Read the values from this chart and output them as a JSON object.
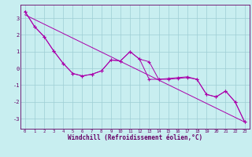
{
  "xlabel": "Windchill (Refroidissement éolien,°C)",
  "line1_y": [
    3.4,
    2.5,
    1.9,
    1.05,
    0.3,
    -0.3,
    -0.45,
    -0.35,
    -0.15,
    0.5,
    0.45,
    1.0,
    0.55,
    0.4,
    -0.65,
    -0.65,
    -0.6,
    -0.55,
    -0.65,
    -1.55,
    -1.7,
    -1.35,
    -2.0,
    -3.2
  ],
  "line2_y": [
    3.4,
    2.5,
    1.9,
    1.05,
    0.3,
    -0.3,
    -0.45,
    -0.35,
    -0.15,
    0.5,
    0.45,
    1.0,
    0.55,
    -0.65,
    -0.65,
    -0.6,
    -0.55,
    -0.5,
    -0.65,
    -1.55,
    -1.7,
    -1.35,
    -2.0,
    -3.2
  ],
  "trend_x": [
    0,
    23
  ],
  "trend_y": [
    3.2,
    -3.2
  ],
  "color": "#aa00aa",
  "bg_color": "#c8eef0",
  "grid_color": "#9ecdd4",
  "xlim": [
    -0.5,
    23.5
  ],
  "ylim": [
    -3.6,
    3.8
  ],
  "yticks": [
    -3,
    -2,
    -1,
    0,
    1,
    2,
    3
  ],
  "xticks": [
    0,
    1,
    2,
    3,
    4,
    5,
    6,
    7,
    8,
    9,
    10,
    11,
    12,
    13,
    14,
    15,
    16,
    17,
    18,
    19,
    20,
    21,
    22,
    23
  ]
}
